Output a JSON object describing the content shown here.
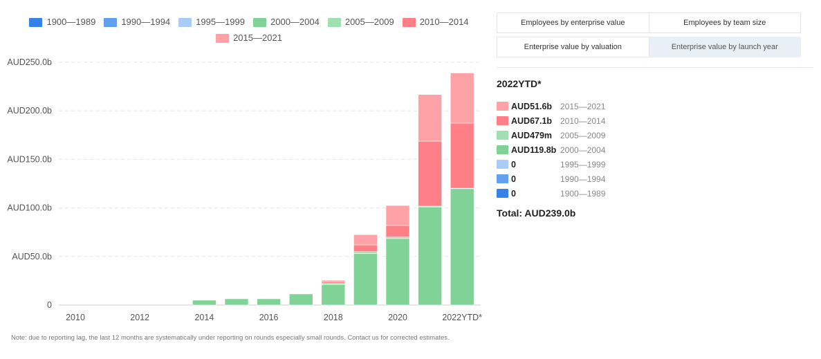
{
  "colors": {
    "1900-1989": "#3583e8",
    "1990-1994": "#61a0ee",
    "1995-1999": "#a9cbf7",
    "2000-2004": "#80d296",
    "2005-2009": "#a0e0b0",
    "2010-2014": "#ff7f87",
    "2015-2021": "#ffa2a8"
  },
  "legend": [
    {
      "key": "1900-1989",
      "label": "1900—1989"
    },
    {
      "key": "1990-1994",
      "label": "1990—1994"
    },
    {
      "key": "1995-1999",
      "label": "1995—1999"
    },
    {
      "key": "2000-2004",
      "label": "2000—2004"
    },
    {
      "key": "2005-2009",
      "label": "2005—2009"
    },
    {
      "key": "2010-2014",
      "label": "2010—2014"
    },
    {
      "key": "2015-2021",
      "label": "2015—2021"
    }
  ],
  "tabs": [
    {
      "label": "Employees by enterprise value",
      "active": false
    },
    {
      "label": "Employees by team size",
      "active": false
    },
    {
      "label": "Enterprise value by valuation",
      "active": false
    },
    {
      "label": "Enterprise value by launch year",
      "active": true
    }
  ],
  "panel": {
    "title": "2022YTD*",
    "rows": [
      {
        "key": "2015-2021",
        "value": "AUD51.6b",
        "label": "2015—2021"
      },
      {
        "key": "2010-2014",
        "value": "AUD67.1b",
        "label": "2010—2014"
      },
      {
        "key": "2005-2009",
        "value": "AUD479m",
        "label": "2005—2009"
      },
      {
        "key": "2000-2004",
        "value": "AUD119.8b",
        "label": "2000—2004"
      },
      {
        "key": "1995-1999",
        "value": "0",
        "label": "1995—1999"
      },
      {
        "key": "1990-1994",
        "value": "0",
        "label": "1990—1994"
      },
      {
        "key": "1900-1989",
        "value": "0",
        "label": "1900—1989"
      }
    ],
    "total": "Total: AUD239.0b"
  },
  "note": "Note: due to reporting lag, the last 12 months are systematically under reporting on rounds especially small rounds. Contact us for corrected estimates.",
  "chart_data": {
    "type": "bar",
    "stacked": true,
    "categories": [
      "2010",
      "2011",
      "2012",
      "2013",
      "2014",
      "2015",
      "2016",
      "2017",
      "2018",
      "2019",
      "2020",
      "2021",
      "2022YTD*"
    ],
    "tick_labels": [
      "2010",
      "",
      "2012",
      "",
      "2014",
      "",
      "2016",
      "",
      "2018",
      "",
      "2020",
      "",
      "2022YTD*"
    ],
    "y_ticks": [
      0,
      50,
      100,
      150,
      200,
      250
    ],
    "y_tick_labels": [
      "0",
      "AUD50.0b",
      "AUD100.0b",
      "AUD150.0b",
      "AUD200.0b",
      "AUD250.0b"
    ],
    "ylim": [
      0,
      250
    ],
    "grid": true,
    "legend_position": "top",
    "series": [
      {
        "key": "1900-1989",
        "name": "1900—1989",
        "values": [
          0,
          0,
          0,
          0,
          0,
          0,
          0,
          0,
          0,
          0,
          0,
          0,
          0
        ]
      },
      {
        "key": "1990-1994",
        "name": "1990—1994",
        "values": [
          0,
          0,
          0,
          0,
          0,
          0,
          0,
          0,
          0,
          0,
          0,
          0,
          0
        ]
      },
      {
        "key": "1995-1999",
        "name": "1995—1999",
        "values": [
          0,
          0,
          0,
          0,
          0,
          0,
          0,
          0,
          0,
          0,
          0,
          0,
          0
        ]
      },
      {
        "key": "2000-2004",
        "name": "2000—2004",
        "values": [
          0,
          0,
          0,
          0,
          5,
          6.5,
          6.5,
          11.5,
          21,
          53,
          68.5,
          101,
          119.8
        ]
      },
      {
        "key": "2005-2009",
        "name": "2005—2009",
        "values": [
          0,
          0,
          0,
          0,
          0,
          0.3,
          0.3,
          0.3,
          1.5,
          2,
          1.5,
          0.8,
          0.479
        ]
      },
      {
        "key": "2010-2014",
        "name": "2010—2014",
        "values": [
          0,
          0,
          0,
          0,
          0,
          0,
          0,
          0,
          1.5,
          7,
          12,
          67,
          67.1
        ]
      },
      {
        "key": "2015-2021",
        "name": "2015—2021",
        "values": [
          0,
          0,
          0,
          0,
          0,
          0,
          0,
          0,
          1.5,
          10.5,
          20.5,
          48,
          51.6
        ]
      }
    ]
  }
}
